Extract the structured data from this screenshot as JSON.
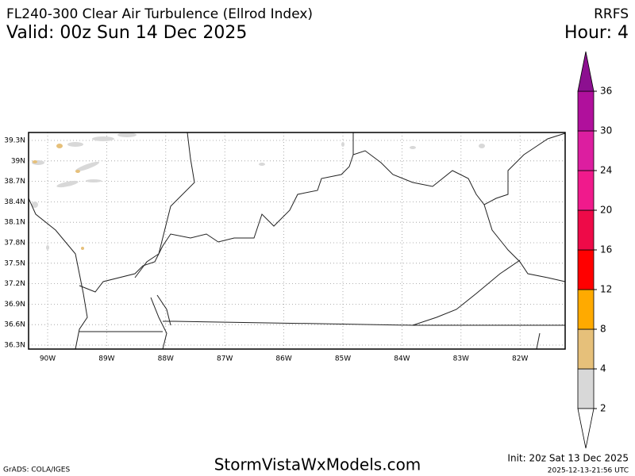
{
  "header": {
    "title": "FL240-300 Clear Air Turbulence (Ellrod Index)",
    "valid": "Valid: 00z Sun 14 Dec 2025",
    "model": "RRFS",
    "hour": "Hour: 4"
  },
  "map": {
    "lat_labels": [
      "39.3N",
      "39N",
      "38.7N",
      "38.4N",
      "38.1N",
      "37.8N",
      "37.5N",
      "37.2N",
      "36.9N",
      "36.6N",
      "36.3N"
    ],
    "lon_labels": [
      "90W",
      "89W",
      "88W",
      "87W",
      "86W",
      "85W",
      "84W",
      "83W",
      "82W"
    ]
  },
  "colorbar": {
    "levels": [
      2,
      4,
      8,
      12,
      16,
      20,
      24,
      30,
      36
    ],
    "colors": [
      "#ffffff",
      "#d8d8d8",
      "#e6c07a",
      "#ffaa00",
      "#ff0000",
      "#ee0a48",
      "#f01a8c",
      "#dc1ea0",
      "#b0109c",
      "#8c1090"
    ]
  },
  "footer": {
    "credit": "GrADS: COLA/IGES",
    "site": "StormVistaWxModels.com",
    "init": "Init: 20z Sat 13 Dec 2025",
    "timestamp": "2025-12-13-21:56 UTC"
  }
}
